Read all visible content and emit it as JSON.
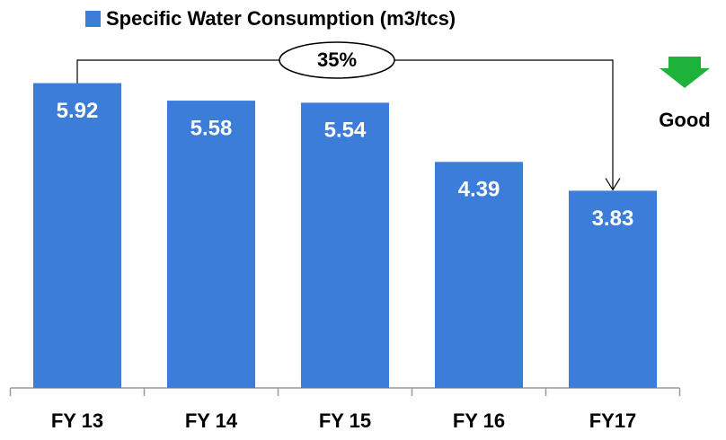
{
  "chart_data": {
    "type": "bar",
    "series": [
      {
        "name": "Specific Water Consumption (m3/tcs)",
        "color": "#3c7dd9",
        "values": [
          5.92,
          5.58,
          5.54,
          4.39,
          3.83
        ]
      }
    ],
    "categories": [
      "FY 13",
      "FY 14",
      "FY 15",
      "FY 16",
      "FY17"
    ],
    "ylim": [
      0,
      7.5
    ],
    "annotations": [
      "35%",
      "Good"
    ]
  }
}
